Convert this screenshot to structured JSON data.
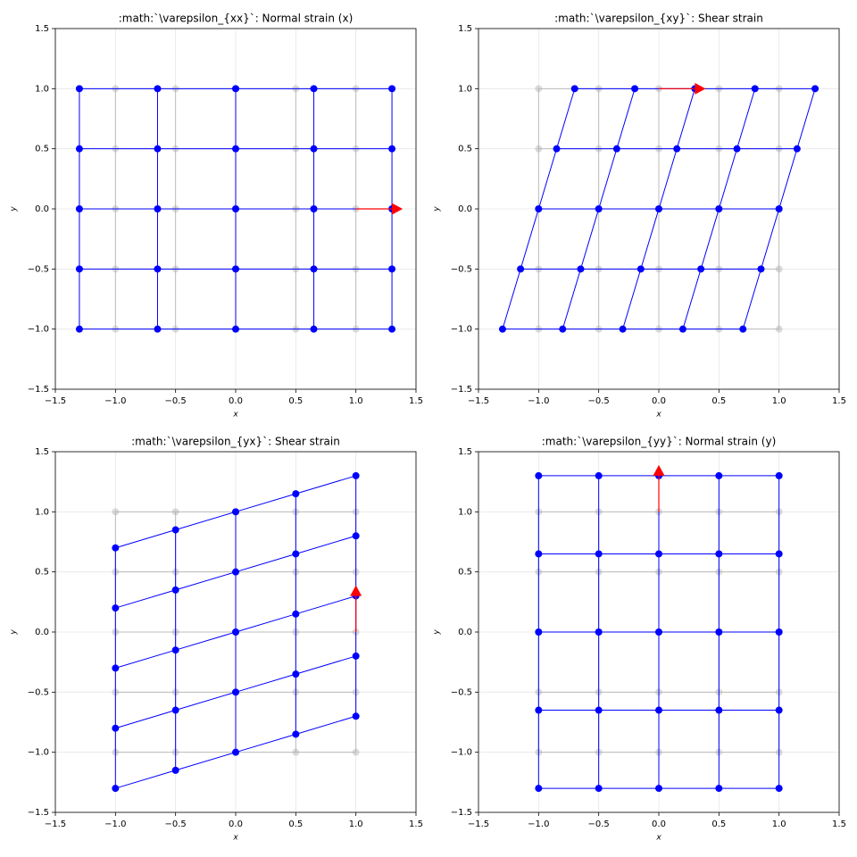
{
  "chart_data": [
    {
      "type": "grid",
      "title": ":math:`\\varepsilon_{xx}`: Normal strain (x)",
      "xlabel": "x",
      "ylabel": "y",
      "xlim": [
        -1.5,
        1.5
      ],
      "ylim": [
        -1.5,
        1.5
      ],
      "xticks": [
        {
          "value": -1.5,
          "label": "−1.5"
        },
        {
          "value": -1,
          "label": "−1.0"
        },
        {
          "value": -0.5,
          "label": "−0.5"
        },
        {
          "value": 0,
          "label": "0.0"
        },
        {
          "value": 0.5,
          "label": "0.5"
        },
        {
          "value": 1,
          "label": "1.0"
        },
        {
          "value": 1.5,
          "label": "1.5"
        }
      ],
      "yticks": [
        {
          "value": -1.5,
          "label": "−1.5"
        },
        {
          "value": -1,
          "label": "−1.0"
        },
        {
          "value": -0.5,
          "label": "−0.5"
        },
        {
          "value": 0,
          "label": "0.0"
        },
        {
          "value": 0.5,
          "label": "0.5"
        },
        {
          "value": 1,
          "label": "1.0"
        },
        {
          "value": 1.5,
          "label": "1.5"
        }
      ],
      "grid": true,
      "series": [
        {
          "color": "#b0b0b0",
          "x": [
            -1,
            -0.5,
            0,
            0.5,
            1,
            -1,
            -0.5,
            0,
            0.5,
            1,
            -1,
            -0.5,
            0,
            0.5,
            1,
            -1,
            -0.5,
            0,
            0.5,
            1,
            -1,
            -0.5,
            0,
            0.5,
            1
          ],
          "values": [
            -1,
            -1,
            -1,
            -1,
            -1,
            -0.5,
            -0.5,
            -0.5,
            -0.5,
            -0.5,
            0,
            0,
            0,
            0,
            0,
            0.5,
            0.5,
            0.5,
            0.5,
            0.5,
            1,
            1,
            1,
            1,
            1
          ]
        },
        {
          "color": "#0000ff",
          "x": [
            -1.3,
            -0.65,
            0,
            0.65,
            1.3,
            -1.3,
            -0.65,
            0,
            0.65,
            1.3,
            -1.3,
            -0.65,
            0,
            0.65,
            1.3,
            -1.3,
            -0.65,
            0,
            0.65,
            1.3,
            -1.3,
            -0.65,
            0,
            0.65,
            1.3
          ],
          "values": [
            -1,
            -1,
            -1,
            -1,
            -1,
            -0.5,
            -0.5,
            -0.5,
            -0.5,
            -0.5,
            0,
            0,
            0,
            0,
            0,
            0.5,
            0.5,
            0.5,
            0.5,
            0.5,
            1,
            1,
            1,
            1,
            1
          ]
        }
      ],
      "arrow": {
        "color": "#ff0000",
        "x": [
          1,
          1.3
        ],
        "values": [
          0,
          0
        ]
      }
    },
    {
      "type": "grid",
      "title": ":math:`\\varepsilon_{xy}`: Shear strain",
      "xlabel": "x",
      "ylabel": "y",
      "xlim": [
        -1.5,
        1.5
      ],
      "ylim": [
        -1.5,
        1.5
      ],
      "xticks": [
        {
          "value": -1.5,
          "label": "−1.5"
        },
        {
          "value": -1,
          "label": "−1.0"
        },
        {
          "value": -0.5,
          "label": "−0.5"
        },
        {
          "value": 0,
          "label": "0.0"
        },
        {
          "value": 0.5,
          "label": "0.5"
        },
        {
          "value": 1,
          "label": "1.0"
        },
        {
          "value": 1.5,
          "label": "1.5"
        }
      ],
      "yticks": [
        {
          "value": -1.5,
          "label": "−1.5"
        },
        {
          "value": -1,
          "label": "−1.0"
        },
        {
          "value": -0.5,
          "label": "−0.5"
        },
        {
          "value": 0,
          "label": "0.0"
        },
        {
          "value": 0.5,
          "label": "0.5"
        },
        {
          "value": 1,
          "label": "1.0"
        },
        {
          "value": 1.5,
          "label": "1.5"
        }
      ],
      "grid": true,
      "series": [
        {
          "color": "#b0b0b0",
          "x": [
            -1,
            -0.5,
            0,
            0.5,
            1,
            -1,
            -0.5,
            0,
            0.5,
            1,
            -1,
            -0.5,
            0,
            0.5,
            1,
            -1,
            -0.5,
            0,
            0.5,
            1,
            -1,
            -0.5,
            0,
            0.5,
            1
          ],
          "values": [
            -1,
            -1,
            -1,
            -1,
            -1,
            -0.5,
            -0.5,
            -0.5,
            -0.5,
            -0.5,
            0,
            0,
            0,
            0,
            0,
            0.5,
            0.5,
            0.5,
            0.5,
            0.5,
            1,
            1,
            1,
            1,
            1
          ]
        },
        {
          "color": "#0000ff",
          "x": [
            -1.3,
            -0.8,
            -0.3,
            0.2,
            0.7,
            -1.15,
            -0.65,
            -0.15,
            0.35,
            0.85,
            -1,
            -0.5,
            0,
            0.5,
            1,
            -0.85,
            -0.35,
            0.15,
            0.65,
            1.15,
            -0.7,
            -0.2,
            0.3,
            0.8,
            1.3
          ],
          "values": [
            -1,
            -1,
            -1,
            -1,
            -1,
            -0.5,
            -0.5,
            -0.5,
            -0.5,
            -0.5,
            0,
            0,
            0,
            0,
            0,
            0.5,
            0.5,
            0.5,
            0.5,
            0.5,
            1,
            1,
            1,
            1,
            1
          ]
        }
      ],
      "arrow": {
        "color": "#ff0000",
        "x": [
          0,
          0.3
        ],
        "values": [
          1,
          1
        ]
      }
    },
    {
      "type": "grid",
      "title": ":math:`\\varepsilon_{yx}`: Shear strain",
      "xlabel": "x",
      "ylabel": "y",
      "xlim": [
        -1.5,
        1.5
      ],
      "ylim": [
        -1.5,
        1.5
      ],
      "xticks": [
        {
          "value": -1.5,
          "label": "−1.5"
        },
        {
          "value": -1,
          "label": "−1.0"
        },
        {
          "value": -0.5,
          "label": "−0.5"
        },
        {
          "value": 0,
          "label": "0.0"
        },
        {
          "value": 0.5,
          "label": "0.5"
        },
        {
          "value": 1,
          "label": "1.0"
        },
        {
          "value": 1.5,
          "label": "1.5"
        }
      ],
      "yticks": [
        {
          "value": -1.5,
          "label": "−1.5"
        },
        {
          "value": -1,
          "label": "−1.0"
        },
        {
          "value": -0.5,
          "label": "−0.5"
        },
        {
          "value": 0,
          "label": "0.0"
        },
        {
          "value": 0.5,
          "label": "0.5"
        },
        {
          "value": 1,
          "label": "1.0"
        },
        {
          "value": 1.5,
          "label": "1.5"
        }
      ],
      "grid": true,
      "series": [
        {
          "color": "#b0b0b0",
          "x": [
            -1,
            -0.5,
            0,
            0.5,
            1,
            -1,
            -0.5,
            0,
            0.5,
            1,
            -1,
            -0.5,
            0,
            0.5,
            1,
            -1,
            -0.5,
            0,
            0.5,
            1,
            -1,
            -0.5,
            0,
            0.5,
            1
          ],
          "values": [
            -1,
            -1,
            -1,
            -1,
            -1,
            -0.5,
            -0.5,
            -0.5,
            -0.5,
            -0.5,
            0,
            0,
            0,
            0,
            0,
            0.5,
            0.5,
            0.5,
            0.5,
            0.5,
            1,
            1,
            1,
            1,
            1
          ]
        },
        {
          "color": "#0000ff",
          "x": [
            -1,
            -0.5,
            0,
            0.5,
            1,
            -1,
            -0.5,
            0,
            0.5,
            1,
            -1,
            -0.5,
            0,
            0.5,
            1,
            -1,
            -0.5,
            0,
            0.5,
            1,
            -1,
            -0.5,
            0,
            0.5,
            1
          ],
          "values": [
            -1.3,
            -1.15,
            -1,
            -0.85,
            -0.7,
            -0.8,
            -0.65,
            -0.5,
            -0.35,
            -0.2,
            -0.3,
            -0.15,
            0,
            0.15,
            0.3,
            0.2,
            0.35,
            0.5,
            0.65,
            0.8,
            0.7,
            0.85,
            1,
            1.15,
            1.3
          ]
        }
      ],
      "arrow": {
        "color": "#ff0000",
        "x": [
          1,
          1
        ],
        "values": [
          0,
          0.3
        ]
      }
    },
    {
      "type": "grid",
      "title": ":math:`\\varepsilon_{yy}`: Normal strain (y)",
      "xlabel": "x",
      "ylabel": "y",
      "xlim": [
        -1.5,
        1.5
      ],
      "ylim": [
        -1.5,
        1.5
      ],
      "xticks": [
        {
          "value": -1.5,
          "label": "−1.5"
        },
        {
          "value": -1,
          "label": "−1.0"
        },
        {
          "value": -0.5,
          "label": "−0.5"
        },
        {
          "value": 0,
          "label": "0.0"
        },
        {
          "value": 0.5,
          "label": "0.5"
        },
        {
          "value": 1,
          "label": "1.0"
        },
        {
          "value": 1.5,
          "label": "1.5"
        }
      ],
      "yticks": [
        {
          "value": -1.5,
          "label": "−1.5"
        },
        {
          "value": -1,
          "label": "−1.0"
        },
        {
          "value": -0.5,
          "label": "−0.5"
        },
        {
          "value": 0,
          "label": "0.0"
        },
        {
          "value": 0.5,
          "label": "0.5"
        },
        {
          "value": 1,
          "label": "1.0"
        },
        {
          "value": 1.5,
          "label": "1.5"
        }
      ],
      "grid": true,
      "series": [
        {
          "color": "#b0b0b0",
          "x": [
            -1,
            -0.5,
            0,
            0.5,
            1,
            -1,
            -0.5,
            0,
            0.5,
            1,
            -1,
            -0.5,
            0,
            0.5,
            1,
            -1,
            -0.5,
            0,
            0.5,
            1,
            -1,
            -0.5,
            0,
            0.5,
            1
          ],
          "values": [
            -1,
            -1,
            -1,
            -1,
            -1,
            -0.5,
            -0.5,
            -0.5,
            -0.5,
            -0.5,
            0,
            0,
            0,
            0,
            0,
            0.5,
            0.5,
            0.5,
            0.5,
            0.5,
            1,
            1,
            1,
            1,
            1
          ]
        },
        {
          "color": "#0000ff",
          "x": [
            -1,
            -0.5,
            0,
            0.5,
            1,
            -1,
            -0.5,
            0,
            0.5,
            1,
            -1,
            -0.5,
            0,
            0.5,
            1,
            -1,
            -0.5,
            0,
            0.5,
            1,
            -1,
            -0.5,
            0,
            0.5,
            1
          ],
          "values": [
            -1.3,
            -1.3,
            -1.3,
            -1.3,
            -1.3,
            -0.65,
            -0.65,
            -0.65,
            -0.65,
            -0.65,
            0,
            0,
            0,
            0,
            0,
            0.65,
            0.65,
            0.65,
            0.65,
            0.65,
            1.3,
            1.3,
            1.3,
            1.3,
            1.3
          ]
        }
      ],
      "arrow": {
        "color": "#ff0000",
        "x": [
          0,
          0
        ],
        "values": [
          1,
          1.3
        ]
      }
    }
  ]
}
